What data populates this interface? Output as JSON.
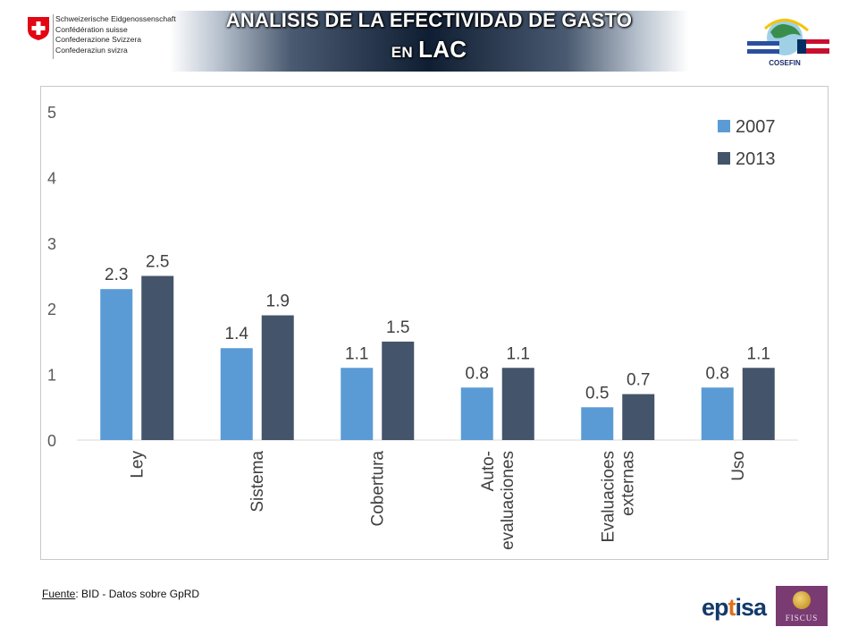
{
  "header": {
    "swiss_lines": [
      "Schweizerische Eidgenossenschaft",
      "Confédération suisse",
      "Confederazione Svizzera",
      "Confederaziun svizra"
    ],
    "title_line1": "ANALISIS DE LA EFECTIVIDAD DE GASTO",
    "title_line2_prefix": "EN",
    "title_line2_main": "LAC",
    "cosefin_label": "COSEFIN"
  },
  "footer": {
    "source_label": "Fuente",
    "source_text": ": BID - Datos sobre GpRD",
    "logo_text_a": "ep",
    "logo_text_b": "t",
    "logo_text_c": "isa",
    "fiscus_label": "FISCUS"
  },
  "chart_data": {
    "type": "bar",
    "categories": [
      [
        "Ley"
      ],
      [
        "Sistema"
      ],
      [
        "Cobertura"
      ],
      [
        "Auto-",
        "evaluaciones"
      ],
      [
        "Evaluacioes",
        "externas"
      ],
      [
        "Uso"
      ]
    ],
    "series": [
      {
        "name": "2007",
        "color": "#5b9bd5",
        "values": [
          2.3,
          1.4,
          1.1,
          0.8,
          0.5,
          0.8
        ]
      },
      {
        "name": "2013",
        "color": "#44546a",
        "values": [
          2.5,
          1.9,
          1.5,
          1.1,
          0.7,
          1.1
        ]
      }
    ],
    "ylim": [
      0,
      5
    ],
    "yticks": [
      0,
      1,
      2,
      3,
      4,
      5
    ],
    "legend": "top-right",
    "grid": false,
    "title": "",
    "xlabel": "",
    "ylabel": ""
  }
}
